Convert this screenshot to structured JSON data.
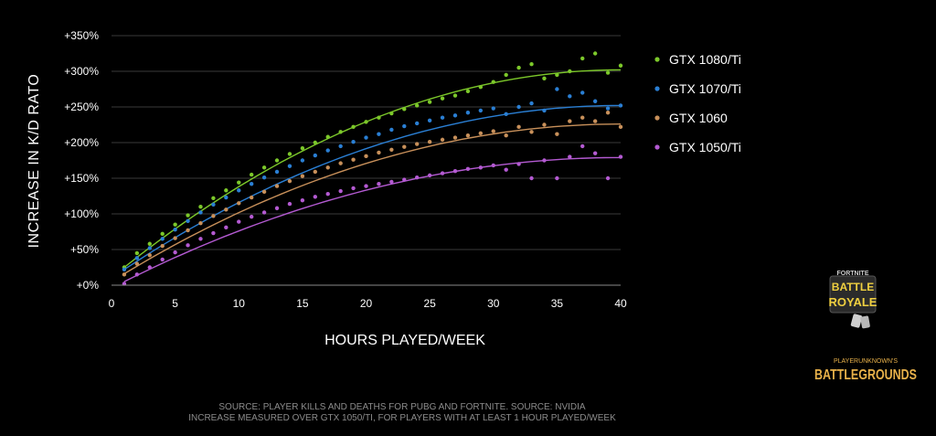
{
  "chart_data": {
    "type": "scatter",
    "title": "",
    "xlabel": "HOURS PLAYED/WEEK",
    "ylabel": "INCREASE IN K/D RATO",
    "xlim": [
      0,
      40
    ],
    "ylim": [
      0,
      350
    ],
    "xticks": [
      0,
      5,
      10,
      15,
      20,
      25,
      30,
      35,
      40
    ],
    "yticks": [
      0,
      50,
      100,
      150,
      200,
      250,
      300,
      350
    ],
    "ytick_labels": [
      "+0%",
      "+50%",
      "+100%",
      "+150%",
      "+200%",
      "+250%",
      "+300%",
      "+350%"
    ],
    "grid": "horizontal",
    "legend_position": "right",
    "trendlines": true,
    "series": [
      {
        "name": "GTX 1080/Ti",
        "color": "#7cc82a",
        "trend": [
          25,
          302
        ],
        "points": [
          [
            1,
            25
          ],
          [
            2,
            45
          ],
          [
            3,
            58
          ],
          [
            4,
            72
          ],
          [
            5,
            85
          ],
          [
            6,
            98
          ],
          [
            7,
            110
          ],
          [
            8,
            122
          ],
          [
            9,
            133
          ],
          [
            10,
            144
          ],
          [
            11,
            155
          ],
          [
            12,
            165
          ],
          [
            13,
            175
          ],
          [
            14,
            184
          ],
          [
            15,
            192
          ],
          [
            16,
            200
          ],
          [
            17,
            208
          ],
          [
            18,
            215
          ],
          [
            19,
            222
          ],
          [
            20,
            229
          ],
          [
            21,
            235
          ],
          [
            22,
            241
          ],
          [
            23,
            247
          ],
          [
            24,
            252
          ],
          [
            25,
            257
          ],
          [
            26,
            262
          ],
          [
            27,
            266
          ],
          [
            28,
            272
          ],
          [
            29,
            278
          ],
          [
            30,
            285
          ],
          [
            31,
            295
          ],
          [
            32,
            305
          ],
          [
            33,
            310
          ],
          [
            34,
            290
          ],
          [
            35,
            295
          ],
          [
            36,
            300
          ],
          [
            37,
            318
          ],
          [
            38,
            325
          ],
          [
            39,
            298
          ],
          [
            40,
            308
          ]
        ]
      },
      {
        "name": "GTX 1070/Ti",
        "color": "#2a7fd4",
        "trend": [
          22,
          252
        ],
        "points": [
          [
            1,
            22
          ],
          [
            2,
            38
          ],
          [
            3,
            52
          ],
          [
            4,
            65
          ],
          [
            5,
            78
          ],
          [
            6,
            90
          ],
          [
            7,
            102
          ],
          [
            8,
            113
          ],
          [
            9,
            123
          ],
          [
            10,
            133
          ],
          [
            11,
            142
          ],
          [
            12,
            151
          ],
          [
            13,
            159
          ],
          [
            14,
            167
          ],
          [
            15,
            175
          ],
          [
            16,
            182
          ],
          [
            17,
            189
          ],
          [
            18,
            195
          ],
          [
            19,
            201
          ],
          [
            20,
            207
          ],
          [
            21,
            212
          ],
          [
            22,
            218
          ],
          [
            23,
            223
          ],
          [
            24,
            227
          ],
          [
            25,
            231
          ],
          [
            26,
            235
          ],
          [
            27,
            238
          ],
          [
            28,
            242
          ],
          [
            29,
            245
          ],
          [
            30,
            248
          ],
          [
            31,
            240
          ],
          [
            32,
            250
          ],
          [
            33,
            255
          ],
          [
            34,
            245
          ],
          [
            35,
            275
          ],
          [
            36,
            265
          ],
          [
            37,
            270
          ],
          [
            38,
            258
          ],
          [
            39,
            248
          ],
          [
            40,
            252
          ]
        ]
      },
      {
        "name": "GTX 1060",
        "color": "#c8905a",
        "trend": [
          16,
          226
        ],
        "points": [
          [
            1,
            15
          ],
          [
            2,
            30
          ],
          [
            3,
            42
          ],
          [
            4,
            55
          ],
          [
            5,
            66
          ],
          [
            6,
            77
          ],
          [
            7,
            87
          ],
          [
            8,
            97
          ],
          [
            9,
            106
          ],
          [
            10,
            115
          ],
          [
            11,
            123
          ],
          [
            12,
            131
          ],
          [
            13,
            139
          ],
          [
            14,
            146
          ],
          [
            15,
            153
          ],
          [
            16,
            159
          ],
          [
            17,
            165
          ],
          [
            18,
            171
          ],
          [
            19,
            176
          ],
          [
            20,
            181
          ],
          [
            21,
            186
          ],
          [
            22,
            190
          ],
          [
            23,
            194
          ],
          [
            24,
            198
          ],
          [
            25,
            201
          ],
          [
            26,
            204
          ],
          [
            27,
            207
          ],
          [
            28,
            210
          ],
          [
            29,
            213
          ],
          [
            30,
            216
          ],
          [
            31,
            210
          ],
          [
            32,
            222
          ],
          [
            33,
            215
          ],
          [
            34,
            225
          ],
          [
            35,
            212
          ],
          [
            36,
            230
          ],
          [
            37,
            235
          ],
          [
            38,
            230
          ],
          [
            39,
            242
          ],
          [
            40,
            222
          ]
        ]
      },
      {
        "name": "GTX 1050/Ti",
        "color": "#b45ad2",
        "trend": [
          5,
          179
        ],
        "points": [
          [
            1,
            2
          ],
          [
            2,
            15
          ],
          [
            3,
            25
          ],
          [
            4,
            36
          ],
          [
            5,
            46
          ],
          [
            6,
            56
          ],
          [
            7,
            65
          ],
          [
            8,
            73
          ],
          [
            9,
            81
          ],
          [
            10,
            89
          ],
          [
            11,
            96
          ],
          [
            12,
            102
          ],
          [
            13,
            108
          ],
          [
            14,
            114
          ],
          [
            15,
            119
          ],
          [
            16,
            124
          ],
          [
            17,
            128
          ],
          [
            18,
            132
          ],
          [
            19,
            136
          ],
          [
            20,
            139
          ],
          [
            21,
            142
          ],
          [
            22,
            145
          ],
          [
            23,
            148
          ],
          [
            24,
            151
          ],
          [
            25,
            154
          ],
          [
            26,
            157
          ],
          [
            27,
            160
          ],
          [
            28,
            163
          ],
          [
            29,
            165
          ],
          [
            30,
            168
          ],
          [
            31,
            162
          ],
          [
            32,
            170
          ],
          [
            33,
            150
          ],
          [
            34,
            175
          ],
          [
            35,
            150
          ],
          [
            36,
            180
          ],
          [
            37,
            195
          ],
          [
            38,
            185
          ],
          [
            39,
            150
          ],
          [
            40,
            180
          ]
        ]
      }
    ]
  },
  "source_lines": [
    "SOURCE: PLAYER KILLS AND DEATHS FOR PUBG AND FORTNITE. SOURCE: NVIDIA",
    "INCREASE MEASURED OVER GTX 1050/TI, FOR PLAYERS WITH AT LEAST 1 HOUR PLAYED/WEEK"
  ],
  "logos": {
    "fortnite": {
      "top": "FORTNITE",
      "line1": "BATTLE",
      "line2": "ROYALE"
    },
    "pubg": {
      "top": "PLAYERUNKNOWN'S",
      "main": "BATTLEGROUNDS"
    }
  }
}
